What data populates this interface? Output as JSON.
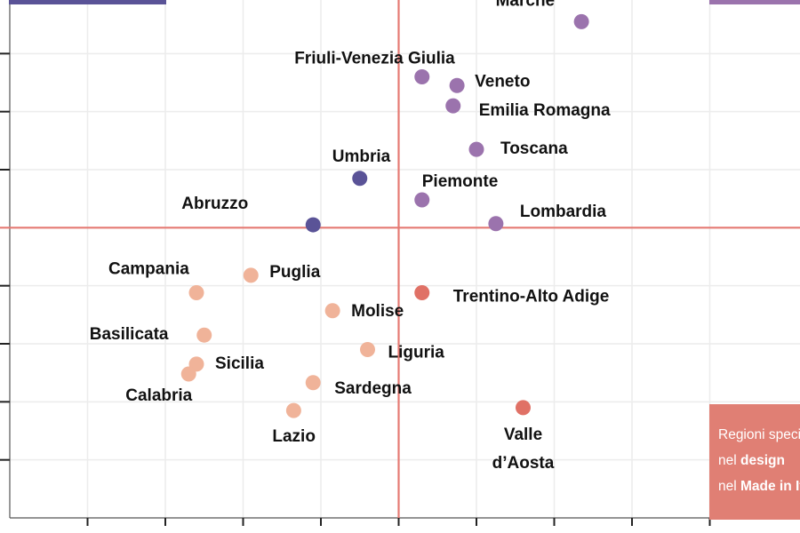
{
  "chart_data": {
    "type": "scatter",
    "title": "",
    "xlabel": "",
    "ylabel": "",
    "grid": true,
    "xlim": [
      -5,
      5
    ],
    "ylim": [
      -5,
      4
    ],
    "x_crosshair": 0,
    "y_crosshair": 0,
    "colors": {
      "top_right": "#9b73ad",
      "top_left": "#5a5397",
      "bottom_right": "#e07166",
      "bottom_left": "#f0b399",
      "crosshair": "#e57a73",
      "grid": "#ececec",
      "axis": "#555555"
    },
    "points": [
      {
        "label": "Marche",
        "x": 2.35,
        "y": 3.55,
        "group": "top_right"
      },
      {
        "label": "Friuli-Venezia Giulia",
        "x": 0.3,
        "y": 2.6,
        "group": "top_right"
      },
      {
        "label": "Veneto",
        "x": 0.75,
        "y": 2.45,
        "group": "top_right"
      },
      {
        "label": "Emilia Romagna",
        "x": 0.7,
        "y": 2.1,
        "group": "top_right"
      },
      {
        "label": "Toscana",
        "x": 1.0,
        "y": 1.35,
        "group": "top_right"
      },
      {
        "label": "Piemonte",
        "x": 0.3,
        "y": 0.48,
        "group": "top_right"
      },
      {
        "label": "Lombardia",
        "x": 1.25,
        "y": 0.07,
        "group": "top_right"
      },
      {
        "label": "Umbria",
        "x": -0.5,
        "y": 0.85,
        "group": "top_left"
      },
      {
        "label": "Abruzzo",
        "x": -1.1,
        "y": 0.05,
        "group": "top_left"
      },
      {
        "label": "Trentino-Alto Adige",
        "x": 0.3,
        "y": -1.12,
        "group": "bottom_right"
      },
      {
        "label": "Valle d’Aosta",
        "x": 1.6,
        "y": -3.1,
        "group": "bottom_right"
      },
      {
        "label": "Campania",
        "x": -2.6,
        "y": -1.12,
        "group": "bottom_left"
      },
      {
        "label": "Puglia",
        "x": -1.9,
        "y": -0.82,
        "group": "bottom_left"
      },
      {
        "label": "Molise",
        "x": -0.85,
        "y": -1.43,
        "group": "bottom_left"
      },
      {
        "label": "Basilicata",
        "x": -2.5,
        "y": -1.85,
        "group": "bottom_left"
      },
      {
        "label": "Liguria",
        "x": -0.4,
        "y": -2.1,
        "group": "bottom_left"
      },
      {
        "label": "Sicilia",
        "x": -2.6,
        "y": -2.35,
        "group": "bottom_left"
      },
      {
        "label": "Calabria",
        "x": -2.7,
        "y": -2.52,
        "group": "bottom_left"
      },
      {
        "label": "Sardegna",
        "x": -1.1,
        "y": -2.67,
        "group": "bottom_left"
      },
      {
        "label": "Lazio",
        "x": -1.35,
        "y": -3.15,
        "group": "bottom_left"
      }
    ]
  },
  "legend_box": {
    "line1": "Regioni specializzate",
    "line2_prefix": "nel ",
    "line2_bold": "design",
    "line3_prefix": "nel ",
    "line3_bold": "Made in Italy"
  }
}
